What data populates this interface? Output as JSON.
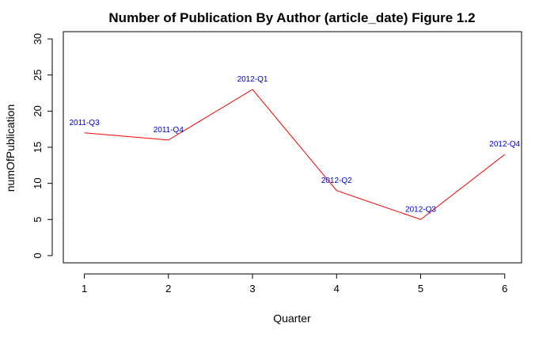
{
  "chart_data": {
    "type": "line",
    "title": "Number of Publication By Author (article_date) Figure 1.2",
    "xlabel": "Quarter",
    "ylabel": "numOfPublication",
    "x": [
      1,
      2,
      3,
      4,
      5,
      6
    ],
    "values": [
      17,
      16,
      23,
      9,
      5,
      14
    ],
    "point_labels": [
      "2011-Q3",
      "2011-Q4",
      "2012-Q1",
      "2012-Q2",
      "2012-Q3",
      "2012-Q4"
    ],
    "xticks": [
      "1",
      "2",
      "3",
      "4",
      "5",
      "6"
    ],
    "yticks": [
      "0",
      "5",
      "10",
      "15",
      "20",
      "25",
      "30"
    ],
    "xlim": [
      0.75,
      6.2
    ],
    "ylim": [
      -1,
      31
    ],
    "grid": false,
    "line_color": "#ff0000",
    "label_color": "#0000cc"
  }
}
